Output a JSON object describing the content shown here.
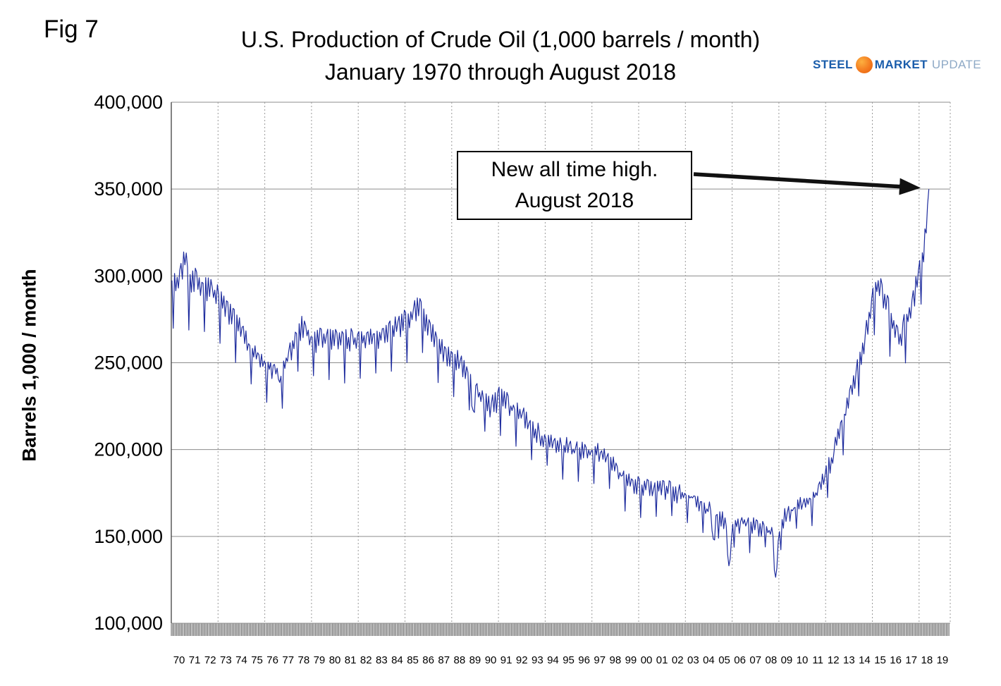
{
  "fig_label": "Fig 7",
  "title": {
    "line1": "U.S. Production of Crude Oil (1,000 barrels / month)",
    "line2": "January 1970 through August 2018"
  },
  "logo": {
    "word1": "STEEL",
    "word2": "MARKET",
    "word3": "UPDATE",
    "blue": "#1a5dab",
    "light_blue": "#8ea9c6",
    "orange": "#f47b20"
  },
  "annotation": {
    "line1": "New all time high.",
    "line2": "August 2018"
  },
  "y_axis_label": "Barrels 1,000 / month",
  "chart_data": {
    "type": "line",
    "title": "U.S. Production of Crude Oil (1,000 barrels / month) January 1970 through August 2018",
    "ylabel": "Barrels 1,000 / month",
    "xlabel": "",
    "ylim": [
      100000,
      400000
    ],
    "y_tick_step": 50000,
    "y_tick_labels": [
      "100,000",
      "150,000",
      "200,000",
      "250,000",
      "300,000",
      "350,000",
      "400,000"
    ],
    "x_start_year": 1970,
    "x_axis_labels": [
      "70",
      "71",
      "72",
      "73",
      "74",
      "75",
      "76",
      "77",
      "78",
      "79",
      "80",
      "81",
      "82",
      "83",
      "84",
      "85",
      "86",
      "87",
      "88",
      "89",
      "90",
      "91",
      "92",
      "93",
      "94",
      "95",
      "96",
      "97",
      "98",
      "99",
      "00",
      "01",
      "02",
      "03",
      "04",
      "05",
      "06",
      "07",
      "08",
      "09",
      "10",
      "11",
      "12",
      "13",
      "14",
      "15",
      "16",
      "17",
      "18",
      "19"
    ],
    "months_count": 584,
    "first_month": "January 1970",
    "last_month": "August 2018",
    "all_time_high_value": 351000,
    "early_peak_value": 310000,
    "deepest_dip_value": 119000,
    "grid": {
      "horizontal": "solid lines every 50,000",
      "vertical": "dotted lines every 3 years",
      "month_tick_band": true
    },
    "v_grid_start": 1973,
    "v_grid_step_years": 3,
    "v_grid_end": 2018,
    "line_color": "#1f2d9e",
    "noise_amplitude": 3000,
    "seed": 20180831,
    "sampling_note": "monthly values reconstructed by linear interpolation of anchors [decimal_year, thousand_barrels_per_month] with days-in-month seasonal adjustment and small jitter",
    "anchors": [
      [
        1970.0,
        291000
      ],
      [
        1970.4,
        296000
      ],
      [
        1970.6,
        301000
      ],
      [
        1970.83,
        313000
      ],
      [
        1971.1,
        294000
      ],
      [
        1971.5,
        297000
      ],
      [
        1972.0,
        291000
      ],
      [
        1972.5,
        292000
      ],
      [
        1973.0,
        286000
      ],
      [
        1973.5,
        282000
      ],
      [
        1974.0,
        273000
      ],
      [
        1974.5,
        266000
      ],
      [
        1975.0,
        257000
      ],
      [
        1975.5,
        252000
      ],
      [
        1976.0,
        248000
      ],
      [
        1976.5,
        246000
      ],
      [
        1976.8,
        245000
      ],
      [
        1976.95,
        231000
      ],
      [
        1977.1,
        247000
      ],
      [
        1977.5,
        253000
      ],
      [
        1978.0,
        263000
      ],
      [
        1978.3,
        270000
      ],
      [
        1978.7,
        267000
      ],
      [
        1979.0,
        261000
      ],
      [
        1979.5,
        264000
      ],
      [
        1980.0,
        263000
      ],
      [
        1980.5,
        265000
      ],
      [
        1981.0,
        262000
      ],
      [
        1981.5,
        262000
      ],
      [
        1982.0,
        263000
      ],
      [
        1982.5,
        264000
      ],
      [
        1983.0,
        264000
      ],
      [
        1983.5,
        265000
      ],
      [
        1984.0,
        268000
      ],
      [
        1984.5,
        271000
      ],
      [
        1985.0,
        273000
      ],
      [
        1985.5,
        277000
      ],
      [
        1985.8,
        282000
      ],
      [
        1986.2,
        275000
      ],
      [
        1986.6,
        268000
      ],
      [
        1987.0,
        258000
      ],
      [
        1987.5,
        255000
      ],
      [
        1988.0,
        251000
      ],
      [
        1988.5,
        249000
      ],
      [
        1989.0,
        241000
      ],
      [
        1989.2,
        238000
      ],
      [
        1989.35,
        218000
      ],
      [
        1989.55,
        235000
      ],
      [
        1990.0,
        227000
      ],
      [
        1990.5,
        224000
      ],
      [
        1991.0,
        229000
      ],
      [
        1991.5,
        226000
      ],
      [
        1992.0,
        221000
      ],
      [
        1992.5,
        218000
      ],
      [
        1993.0,
        212000
      ],
      [
        1993.5,
        209000
      ],
      [
        1994.0,
        205000
      ],
      [
        1994.5,
        203000
      ],
      [
        1995.0,
        201000
      ],
      [
        1995.5,
        200000
      ],
      [
        1996.0,
        198000
      ],
      [
        1996.5,
        198000
      ],
      [
        1997.0,
        198000
      ],
      [
        1997.5,
        197000
      ],
      [
        1998.0,
        194000
      ],
      [
        1998.5,
        190000
      ],
      [
        1999.0,
        182000
      ],
      [
        1999.5,
        179000
      ],
      [
        2000.0,
        178000
      ],
      [
        2000.5,
        177000
      ],
      [
        2001.0,
        177000
      ],
      [
        2001.5,
        176000
      ],
      [
        2002.0,
        176000
      ],
      [
        2002.5,
        174000
      ],
      [
        2003.0,
        173000
      ],
      [
        2003.5,
        172000
      ],
      [
        2004.0,
        168000
      ],
      [
        2004.6,
        164000
      ],
      [
        2004.75,
        147000
      ],
      [
        2004.95,
        161000
      ],
      [
        2005.3,
        160000
      ],
      [
        2005.6,
        155000
      ],
      [
        2005.75,
        129000
      ],
      [
        2006.0,
        153000
      ],
      [
        2006.4,
        157000
      ],
      [
        2007.0,
        156000
      ],
      [
        2007.5,
        155000
      ],
      [
        2008.0,
        154000
      ],
      [
        2008.55,
        152000
      ],
      [
        2008.72,
        120000
      ],
      [
        2008.95,
        150000
      ],
      [
        2009.3,
        161000
      ],
      [
        2009.7,
        164000
      ],
      [
        2010.0,
        166000
      ],
      [
        2010.5,
        167000
      ],
      [
        2011.0,
        170000
      ],
      [
        2011.5,
        174000
      ],
      [
        2012.0,
        186000
      ],
      [
        2012.5,
        198000
      ],
      [
        2013.0,
        213000
      ],
      [
        2013.5,
        229000
      ],
      [
        2014.0,
        246000
      ],
      [
        2014.5,
        264000
      ],
      [
        2015.0,
        286000
      ],
      [
        2015.25,
        294000
      ],
      [
        2015.7,
        288000
      ],
      [
        2016.0,
        280000
      ],
      [
        2016.4,
        269000
      ],
      [
        2016.8,
        261000
      ],
      [
        2017.0,
        270000
      ],
      [
        2017.5,
        280000
      ],
      [
        2017.9,
        298000
      ],
      [
        2018.1,
        306000
      ],
      [
        2018.3,
        318000
      ],
      [
        2018.45,
        330000
      ],
      [
        2018.583,
        345000
      ]
    ]
  }
}
